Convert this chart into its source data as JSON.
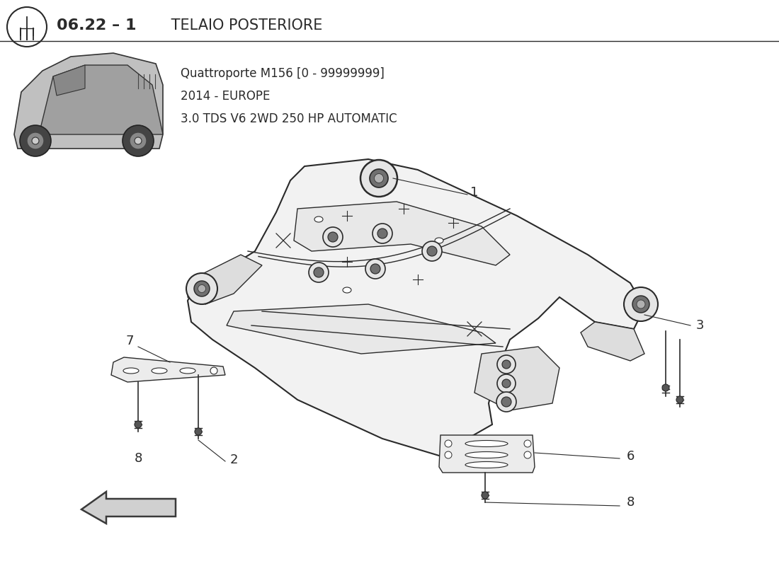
{
  "bg_color": "#ffffff",
  "title_bold": "06.22 – 1",
  "title_regular": " TELAIO POSTERIORE",
  "subtitle_line1": "Quattroporte M156 [0 - 99999999]",
  "subtitle_line2": "2014 - EUROPE",
  "subtitle_line3": "3.0 TDS V6 2WD 250 HP AUTOMATIC",
  "line_color": "#2a2a2a",
  "line_color_light": "#555555"
}
